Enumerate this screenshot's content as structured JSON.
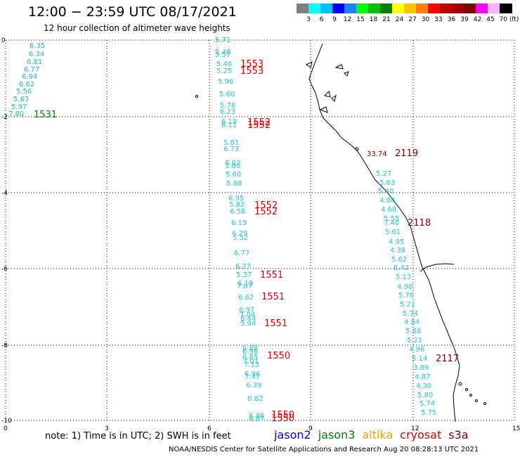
{
  "title": "12:00 − 23:59 UTC 08/17/2021",
  "subtitle": "12 hour collection of altimeter wave heights",
  "legend": {
    "colors": [
      "#7f7f7f",
      "#00ffff",
      "#00bfff",
      "#0000ff",
      "#2080ff",
      "#00ff00",
      "#00c000",
      "#008000",
      "#ffff00",
      "#ffc000",
      "#ff8000",
      "#ff0000",
      "#c00000",
      "#a00000",
      "#800000",
      "#ff00ff",
      "#ffb0ff",
      "#000000"
    ],
    "labels": [
      "3",
      "6",
      "9",
      "12",
      "15",
      "18",
      "21",
      "24",
      "27",
      "30",
      "33",
      "36",
      "39",
      "42",
      "45",
      "70 (ft)"
    ]
  },
  "axes": {
    "x_ticks": [
      "0",
      "3",
      "6",
      "9",
      "12",
      "15"
    ],
    "y_ticks": [
      "0",
      "-2",
      "-4",
      "-6",
      "-8",
      "-10"
    ]
  },
  "tracks": [
    {
      "label": "1531",
      "color": "#008000"
    },
    {
      "label": "1553",
      "color": "#e00000"
    },
    {
      "label": "1553",
      "color": "#e00000"
    },
    {
      "label": "1552",
      "color": "#e00000"
    },
    {
      "label": "1552",
      "color": "#e00000"
    },
    {
      "label": "1552",
      "color": "#e00000"
    },
    {
      "label": "1552",
      "color": "#e00000"
    },
    {
      "label": "1551",
      "color": "#e00000"
    },
    {
      "label": "1551",
      "color": "#e00000"
    },
    {
      "label": "1551",
      "color": "#e00000"
    },
    {
      "label": "1550",
      "color": "#e00000"
    },
    {
      "label": "1550",
      "color": "#e00000"
    },
    {
      "label": "1550",
      "color": "#e00000"
    },
    {
      "label": "2119",
      "color": "#800000"
    },
    {
      "label": "2118",
      "color": "#800000"
    },
    {
      "label": "2117",
      "color": "#800000"
    }
  ],
  "wave_heights": {
    "track_1531": [
      "6.35",
      "6.34",
      "6.81",
      "6.77",
      "6.94",
      "6.62",
      "5.56",
      "5.63",
      "5.97",
      "7.80"
    ],
    "track_155x": [
      "5.71",
      "5.48",
      "5.57",
      "5.46",
      "5.25",
      "5.96",
      "5.60",
      "5.78",
      "6.23",
      "6.19",
      "6.11",
      "5.81",
      "6.73",
      "6.02",
      "5.80",
      "5.60",
      "5.88",
      "6.95",
      "5.82",
      "6.58",
      "6.19",
      "6.29",
      "5.52",
      "6.77",
      "6.27",
      "5.37",
      "6.19",
      "7.07",
      "6.62",
      "6.97",
      "7.04",
      "6.44",
      "5.94",
      "6.88",
      "6.96",
      "6.85",
      "7.01",
      "7.13",
      "6.96",
      "7.47",
      "6.39",
      "6.82",
      "6.86",
      "6.87"
    ],
    "track_211x": [
      "5.27",
      "5.63",
      "5.40",
      "4.80",
      "4.68",
      "5.55",
      "7.40",
      "5.61",
      "4.95",
      "4.38",
      "5.62",
      "6.42",
      "5.13",
      "4.96",
      "5.78",
      "5.21",
      "5.74",
      "4.84",
      "5.68",
      "5.21",
      "4.96",
      "5.14",
      "3.89",
      "4.87",
      "4.30",
      "5.80",
      "5.74",
      "5.75"
    ],
    "outlier": "33.74"
  },
  "note": "note: 1) Time is in UTC; 2) SWH is in feet",
  "satellites": [
    {
      "name": "jason2",
      "color": "#0000ff"
    },
    {
      "name": "jason3",
      "color": "#008000"
    },
    {
      "name": "altika",
      "color": "#ff9900"
    },
    {
      "name": "cryosat",
      "color": "#e00000"
    },
    {
      "name": "s3a",
      "color": "#800000"
    }
  ],
  "credit": "NOAA/NESDIS Center for Satellite Applications and Research   Aug 20 08:28:13 UTC 2021"
}
